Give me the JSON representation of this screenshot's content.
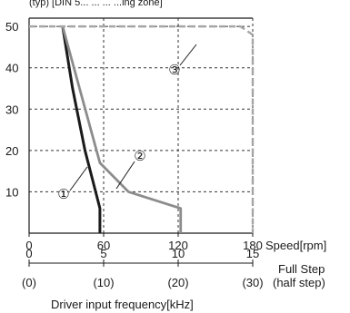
{
  "chart_data": {
    "type": "line",
    "title_fragment": "(typ)  [DIN 5... ... ... ...ing zone]",
    "x_axis": {
      "label": "Speed[rpm]",
      "ticks": [
        0,
        60,
        120,
        180
      ],
      "xlim": [
        0,
        180
      ],
      "tick_labels": [
        "0",
        "60",
        "120",
        "180"
      ]
    },
    "x_axis_2": {
      "label_line1": "Full Step",
      "label_line2": "(half step)",
      "ticks": [
        {
          "rpm": 0,
          "full": "0",
          "half": "(0)"
        },
        {
          "rpm": 60,
          "full": "5",
          "half": "(10)"
        },
        {
          "rpm": 120,
          "full": "10",
          "half": "(20)"
        },
        {
          "rpm": 180,
          "full": "15",
          "half": "(30)"
        }
      ]
    },
    "x_axis_3": {
      "label": "Driver input frequency[kHz]"
    },
    "y_axis": {
      "ticks": [
        10,
        20,
        30,
        40,
        50
      ],
      "ylim": [
        0,
        52
      ]
    },
    "grid": true,
    "grid_style": "dashed",
    "series": [
      {
        "name": "①",
        "color": "#1a1a1a",
        "style": "solid",
        "points": [
          [
            27,
            50
          ],
          [
            35,
            35
          ],
          [
            45,
            20
          ],
          [
            57,
            6
          ],
          [
            57,
            0
          ]
        ],
        "marker_label": "①"
      },
      {
        "name": "②",
        "color": "#8c8c8c",
        "style": "solid",
        "points": [
          [
            27,
            50
          ],
          [
            57,
            17
          ],
          [
            80,
            10
          ],
          [
            122,
            6
          ],
          [
            122,
            0
          ]
        ],
        "marker_label": "②"
      },
      {
        "name": "③",
        "color": "#a6a6a6",
        "style": "dashed",
        "points": [
          [
            0,
            50
          ],
          [
            170,
            50
          ],
          [
            180,
            48
          ],
          [
            180,
            0
          ]
        ],
        "marker_label": "③"
      }
    ]
  }
}
